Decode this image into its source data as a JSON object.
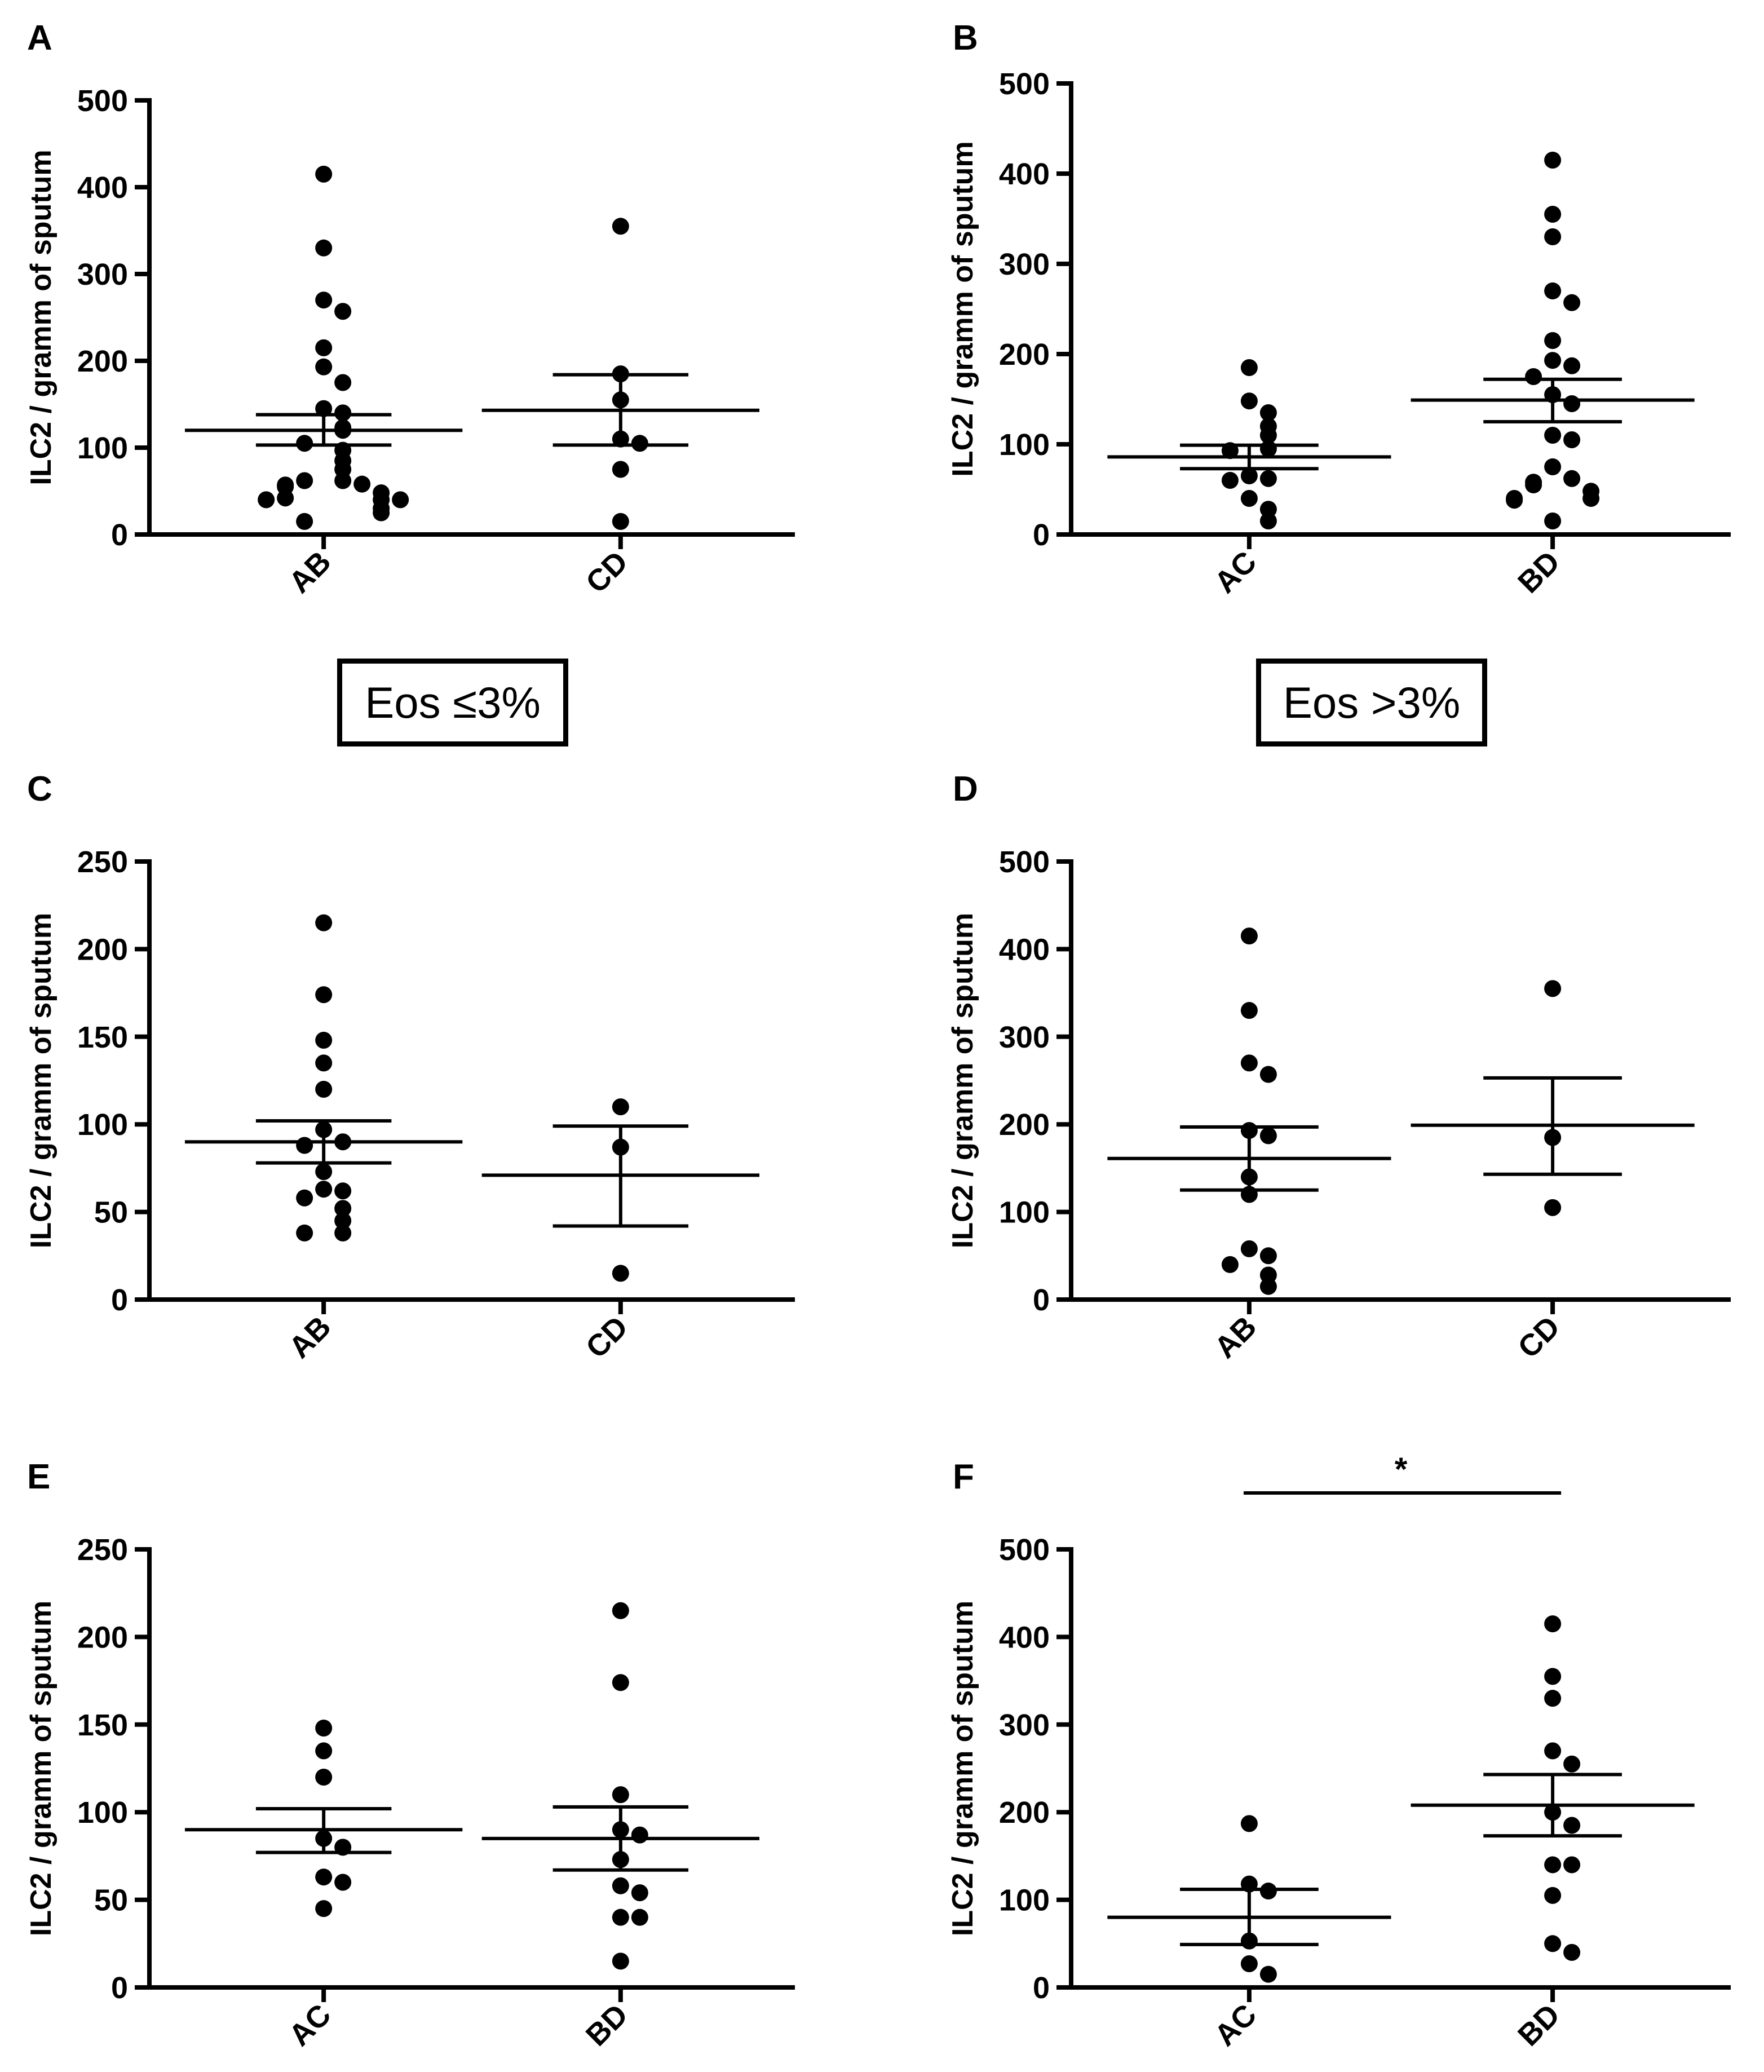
{
  "group_labels": [
    "Eos ≤3%",
    "Eos >3%"
  ],
  "chart_data": [
    {
      "panel": "A",
      "type": "scatter",
      "ylabel": "ILC2 / gramm of sputum",
      "ylim": [
        0,
        500
      ],
      "yticks": [
        0,
        100,
        200,
        300,
        400,
        500
      ],
      "categories": [
        "AB",
        "CD"
      ],
      "points": [
        [
          415,
          330,
          270,
          257,
          215,
          193,
          175,
          145,
          140,
          123,
          120,
          105,
          97,
          85,
          75,
          62,
          62,
          58,
          57,
          55,
          48,
          42,
          40,
          40,
          40,
          30,
          25,
          15
        ],
        [
          355,
          185,
          155,
          110,
          105,
          75,
          15
        ]
      ],
      "mean": [
        120,
        143
      ],
      "sem": [
        [
          103,
          138
        ],
        [
          103,
          184
        ]
      ]
    },
    {
      "panel": "B",
      "type": "scatter",
      "ylabel": "ILC2 / gramm of sputum",
      "ylim": [
        0,
        500
      ],
      "yticks": [
        0,
        100,
        200,
        300,
        400,
        500
      ],
      "categories": [
        "AC",
        "BD"
      ],
      "points": [
        [
          185,
          148,
          135,
          120,
          110,
          95,
          93,
          65,
          62,
          60,
          40,
          28,
          15
        ],
        [
          415,
          355,
          330,
          270,
          257,
          215,
          193,
          187,
          175,
          155,
          145,
          110,
          105,
          75,
          62,
          58,
          55,
          48,
          40,
          40,
          38,
          15
        ]
      ],
      "mean": [
        86,
        149
      ],
      "sem": [
        [
          73,
          99
        ],
        [
          125,
          172
        ]
      ]
    },
    {
      "panel": "C",
      "type": "scatter",
      "ylabel": "ILC2 / gramm of sputum",
      "ylim": [
        0,
        250
      ],
      "yticks": [
        0,
        50,
        100,
        150,
        200,
        250
      ],
      "categories": [
        "AB",
        "CD"
      ],
      "points": [
        [
          215,
          174,
          148,
          135,
          120,
          97,
          90,
          88,
          73,
          63,
          62,
          58,
          52,
          45,
          38,
          38
        ],
        [
          110,
          87,
          15
        ]
      ],
      "mean": [
        90,
        71
      ],
      "sem": [
        [
          78,
          102
        ],
        [
          42,
          99
        ]
      ]
    },
    {
      "panel": "D",
      "type": "scatter",
      "ylabel": "ILC2 / gramm of sputum",
      "ylim": [
        0,
        500
      ],
      "yticks": [
        0,
        100,
        200,
        300,
        400,
        500
      ],
      "categories": [
        "AB",
        "CD"
      ],
      "points": [
        [
          415,
          330,
          270,
          257,
          193,
          187,
          140,
          120,
          58,
          50,
          40,
          28,
          15
        ],
        [
          355,
          185,
          105
        ]
      ],
      "mean": [
        161,
        199
      ],
      "sem": [
        [
          125,
          197
        ],
        [
          143,
          253
        ]
      ]
    },
    {
      "panel": "E",
      "type": "scatter",
      "ylabel": "ILC2 / gramm of sputum",
      "ylim": [
        0,
        250
      ],
      "yticks": [
        0,
        50,
        100,
        150,
        200,
        250
      ],
      "categories": [
        "AC",
        "BD"
      ],
      "points": [
        [
          148,
          135,
          120,
          85,
          80,
          63,
          60,
          45
        ],
        [
          215,
          174,
          110,
          90,
          87,
          73,
          58,
          54,
          40,
          40,
          15
        ]
      ],
      "mean": [
        90,
        85
      ],
      "sem": [
        [
          77,
          102
        ],
        [
          67,
          103
        ]
      ]
    },
    {
      "panel": "F",
      "type": "scatter",
      "ylabel": "ILC2 / gramm of sputum",
      "ylim": [
        0,
        500
      ],
      "yticks": [
        0,
        100,
        200,
        300,
        400,
        500
      ],
      "categories": [
        "AC",
        "BD"
      ],
      "points": [
        [
          187,
          118,
          110,
          53,
          27,
          15
        ],
        [
          415,
          355,
          330,
          270,
          255,
          200,
          185,
          140,
          140,
          105,
          50,
          40
        ]
      ],
      "mean": [
        80,
        208
      ],
      "sem": [
        [
          49,
          112
        ],
        [
          173,
          243
        ]
      ],
      "significance": "*"
    }
  ]
}
